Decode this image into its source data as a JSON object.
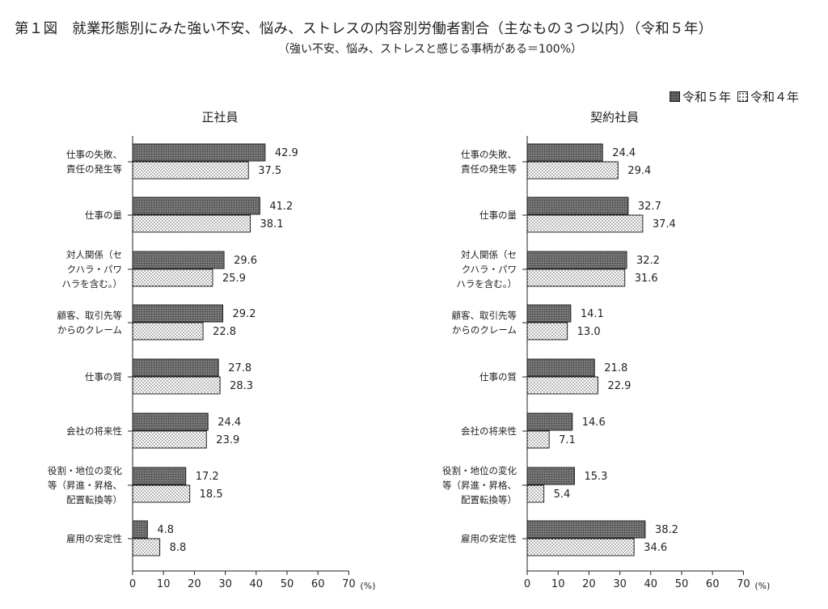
{
  "title": "第１図　就業形態別にみた強い不安、悩み、ストレスの内容別労働者割合（主なもの３つ以内）（令和５年）",
  "subtitle": "（強い不安、悩み、ストレスと感じる事柄がある＝100%）",
  "legend": {
    "r5": "令和５年",
    "r4": "令和４年"
  },
  "colors": {
    "r5": "#6f6f6f",
    "r4": "#ffffff",
    "axis": "#222222"
  },
  "chart_data": [
    {
      "type": "bar",
      "orientation": "horizontal",
      "title": "正社員",
      "xunit": "(%)",
      "xlim": [
        0,
        70
      ],
      "xticks": [
        0,
        10,
        20,
        30,
        40,
        50,
        60,
        70
      ],
      "categories": [
        [
          "仕事の失敗、",
          "責任の発生等"
        ],
        [
          "仕事の量"
        ],
        [
          "対人関係（セ",
          "クハラ・パワ",
          "ハラを含む。）"
        ],
        [
          "顧客、取引先等",
          "からのクレーム"
        ],
        [
          "仕事の質"
        ],
        [
          "会社の将来性"
        ],
        [
          "役割・地位の変化",
          "等（昇進・昇格、",
          "配置転換等）"
        ],
        [
          "雇用の安定性"
        ]
      ],
      "series": [
        {
          "name": "令和５年",
          "values": [
            42.9,
            41.2,
            29.6,
            29.2,
            27.8,
            24.4,
            17.2,
            4.8
          ],
          "labels": [
            "42.9",
            "41.2",
            "29.6",
            "29.2",
            "27.8",
            "24.4",
            "17.2",
            "4.8"
          ]
        },
        {
          "name": "令和４年",
          "values": [
            37.5,
            38.1,
            25.9,
            22.8,
            28.3,
            23.9,
            18.5,
            8.8
          ],
          "labels": [
            "37.5",
            "38.1",
            "25.9",
            "22.8",
            "28.3",
            "23.9",
            "18.5",
            "8.8"
          ]
        }
      ]
    },
    {
      "type": "bar",
      "orientation": "horizontal",
      "title": "契約社員",
      "xunit": "(%)",
      "xlim": [
        0,
        70
      ],
      "xticks": [
        0,
        10,
        20,
        30,
        40,
        50,
        60,
        70
      ],
      "categories": [
        [
          "仕事の失敗、",
          "責任の発生等"
        ],
        [
          "仕事の量"
        ],
        [
          "対人関係（セ",
          "クハラ・パワ",
          "ハラを含む。）"
        ],
        [
          "顧客、取引先等",
          "からのクレーム"
        ],
        [
          "仕事の質"
        ],
        [
          "会社の将来性"
        ],
        [
          "役割・地位の変化",
          "等（昇進・昇格、",
          "配置転換等）"
        ],
        [
          "雇用の安定性"
        ]
      ],
      "series": [
        {
          "name": "令和５年",
          "values": [
            24.4,
            32.7,
            32.2,
            14.1,
            21.8,
            14.6,
            15.3,
            38.2
          ],
          "labels": [
            "24.4",
            "32.7",
            "32.2",
            "14.1",
            "21.8",
            "14.6",
            "15.3",
            "38.2"
          ]
        },
        {
          "name": "令和４年",
          "values": [
            29.4,
            37.4,
            31.6,
            13.0,
            22.9,
            7.1,
            5.4,
            34.6
          ],
          "labels": [
            "29.4",
            "37.4",
            "31.6",
            "13.0",
            "22.9",
            "7.1",
            "5.4",
            "34.6"
          ]
        }
      ]
    }
  ]
}
